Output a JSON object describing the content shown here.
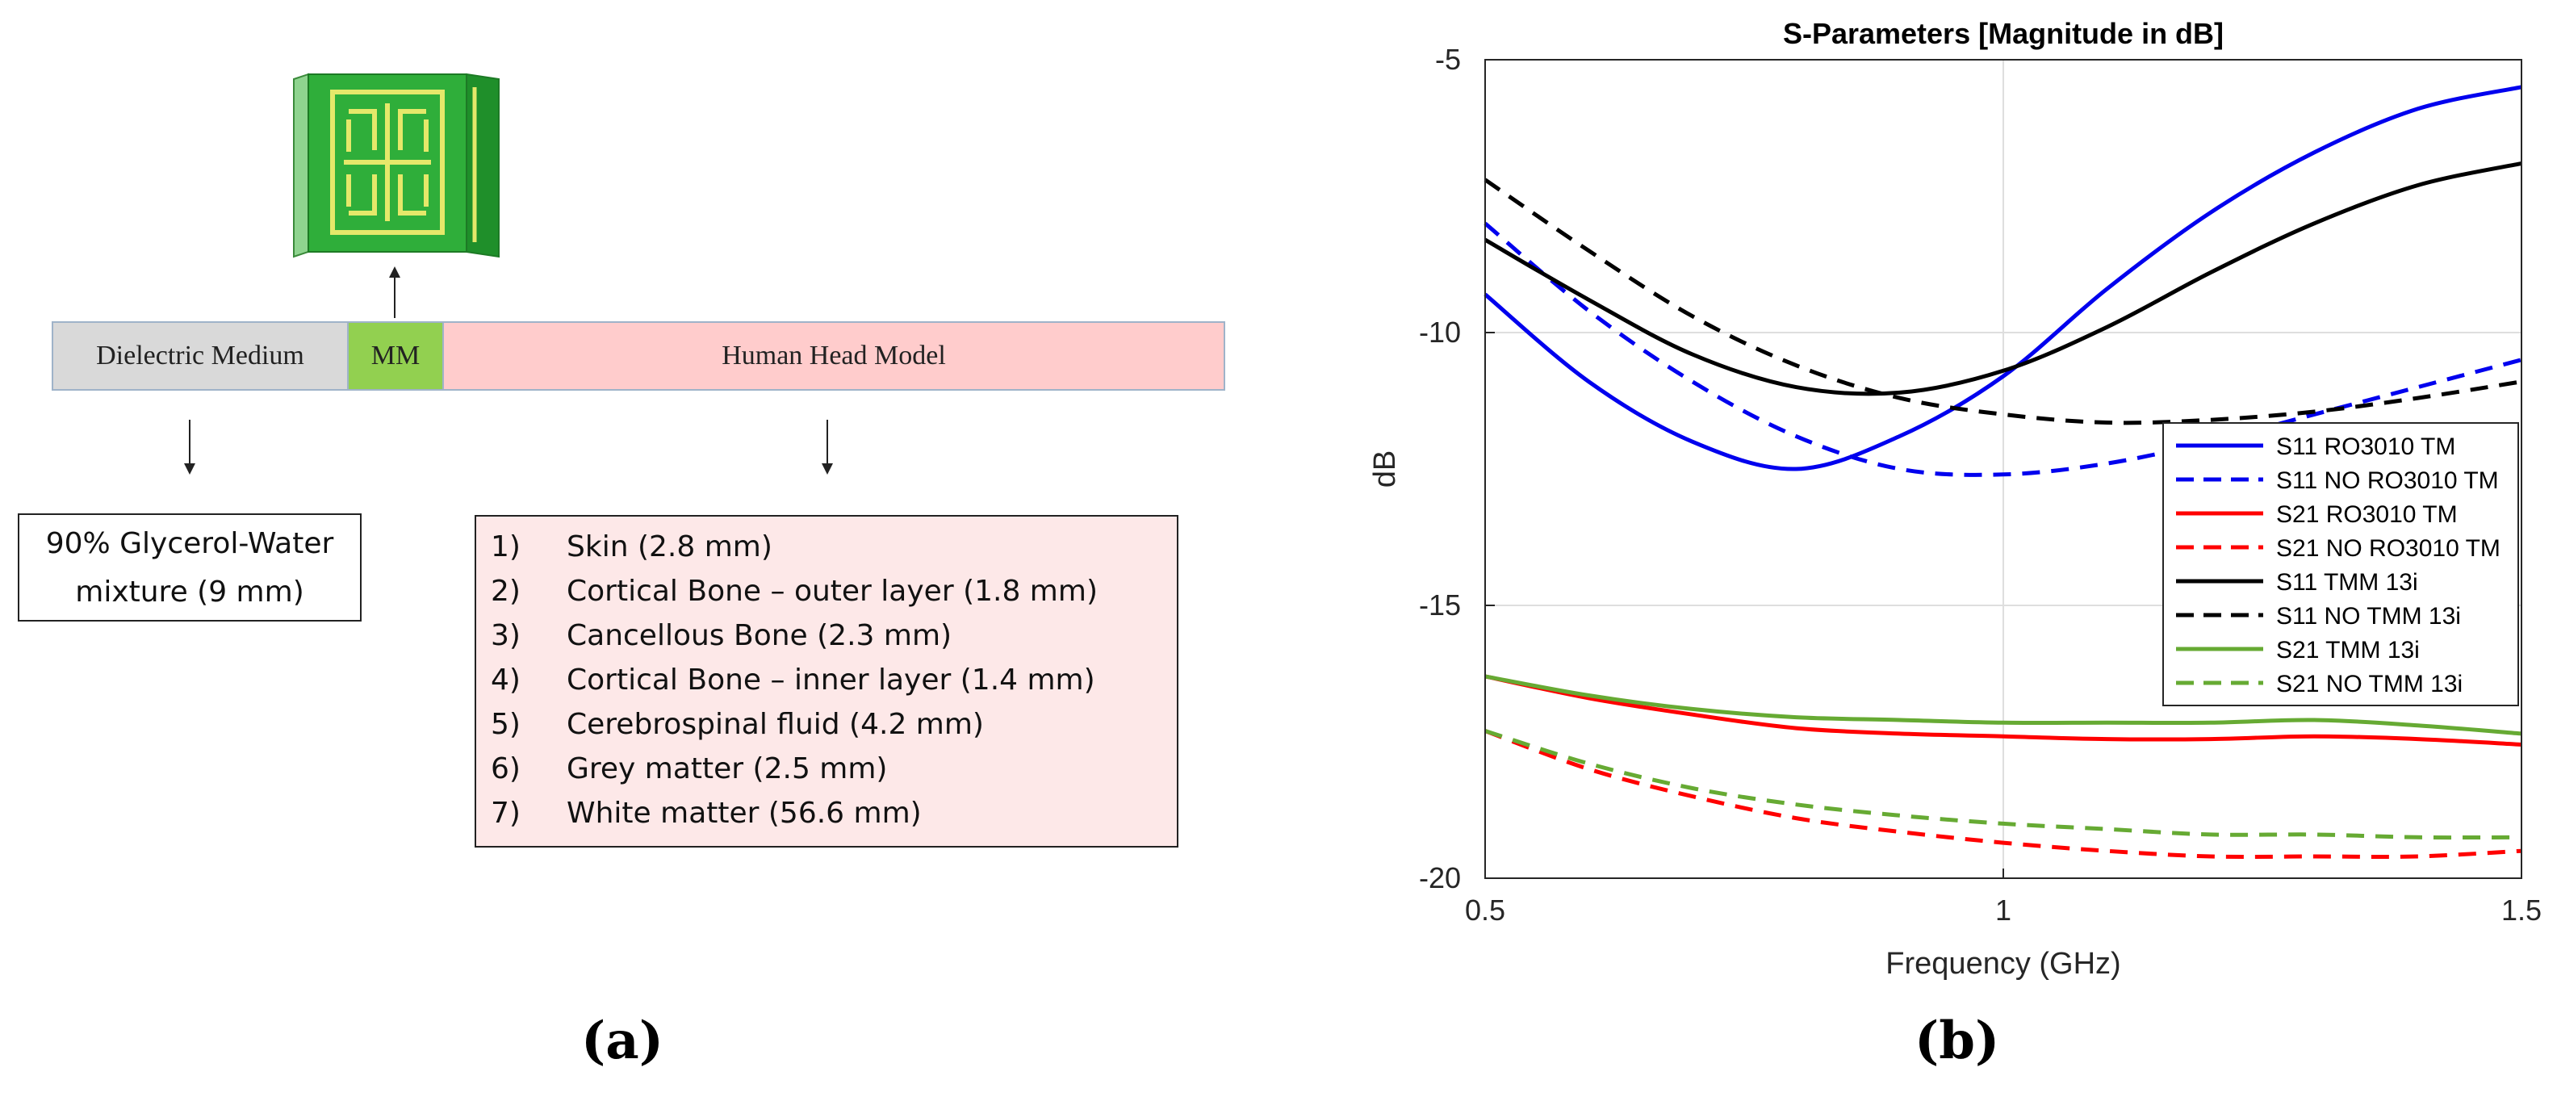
{
  "panel_a": {
    "label": "(a)",
    "layers": [
      {
        "name": "Dielectric Medium",
        "color": "#d9d9d9"
      },
      {
        "name": "MM",
        "color": "#92d050"
      },
      {
        "name": "Human Head Model",
        "color": "#ffcccc"
      }
    ],
    "glycerol_box": {
      "line1": "90% Glycerol-Water",
      "line2": "mixture (9 mm)"
    },
    "tissues": [
      {
        "num": "1)",
        "text": "Skin (2.8 mm)"
      },
      {
        "num": "2)",
        "text": "Cortical Bone – outer layer (1.8 mm)"
      },
      {
        "num": "3)",
        "text": "Cancellous Bone (2.3 mm)"
      },
      {
        "num": "4)",
        "text": "Cortical Bone – inner layer (1.4 mm)"
      },
      {
        "num": "5)",
        "text": "Cerebrospinal fluid (4.2 mm)"
      },
      {
        "num": "6)",
        "text": "Grey matter (2.5 mm)"
      },
      {
        "num": "7)",
        "text": "White matter (56.6 mm)"
      }
    ],
    "metamaterial_icon": "metamaterial-unit-cell-icon"
  },
  "panel_b": {
    "label": "(b)"
  },
  "chart_data": {
    "type": "line",
    "title": "S-Parameters [Magnitude in dB]",
    "xlabel": "Frequency (GHz)",
    "ylabel": "dB",
    "xlim": [
      0.5,
      1.5
    ],
    "ylim": [
      -20,
      -5
    ],
    "xticks": [
      0.5,
      1,
      1.5
    ],
    "xtick_labels": [
      "0.5",
      "1",
      "1.5"
    ],
    "yticks": [
      -20,
      -15,
      -10,
      -5
    ],
    "ytick_labels": [
      "-20",
      "-15",
      "-10",
      "-5"
    ],
    "grid": true,
    "legend_position": "right",
    "x": [
      0.5,
      0.6,
      0.7,
      0.8,
      0.9,
      1.0,
      1.1,
      1.2,
      1.3,
      1.4,
      1.5
    ],
    "series": [
      {
        "name": "S11 RO3010 TM",
        "color": "#0000ee",
        "dash": "solid",
        "values": [
          -9.3,
          -10.9,
          -12.0,
          -12.5,
          -11.9,
          -10.8,
          -9.2,
          -7.8,
          -6.7,
          -5.9,
          -5.5
        ]
      },
      {
        "name": "S11 NO RO3010 TM",
        "color": "#0000ee",
        "dash": "dashed",
        "values": [
          -8.0,
          -9.6,
          -10.9,
          -11.9,
          -12.5,
          -12.6,
          -12.4,
          -12.0,
          -11.5,
          -11.0,
          -10.5
        ]
      },
      {
        "name": "S21 RO3010 TM",
        "color": "#ff0000",
        "dash": "solid",
        "values": [
          -16.3,
          -16.7,
          -17.0,
          -17.25,
          -17.35,
          -17.4,
          -17.45,
          -17.45,
          -17.4,
          -17.45,
          -17.55
        ]
      },
      {
        "name": "S21 NO RO3010 TM",
        "color": "#ff0000",
        "dash": "dashed",
        "values": [
          -17.3,
          -18.0,
          -18.5,
          -18.9,
          -19.15,
          -19.35,
          -19.5,
          -19.6,
          -19.6,
          -19.6,
          -19.5
        ]
      },
      {
        "name": "S11 TMM 13i",
        "color": "#000000",
        "dash": "solid",
        "values": [
          -8.3,
          -9.4,
          -10.4,
          -11.0,
          -11.1,
          -10.7,
          -9.9,
          -8.9,
          -8.0,
          -7.3,
          -6.9
        ]
      },
      {
        "name": "S11 NO TMM 13i",
        "color": "#000000",
        "dash": "dashed",
        "values": [
          -7.2,
          -8.5,
          -9.7,
          -10.6,
          -11.2,
          -11.5,
          -11.65,
          -11.6,
          -11.45,
          -11.2,
          -10.9
        ]
      },
      {
        "name": "S21 TMM 13i",
        "color": "#66aa33",
        "dash": "solid",
        "values": [
          -16.3,
          -16.65,
          -16.9,
          -17.05,
          -17.1,
          -17.15,
          -17.15,
          -17.15,
          -17.1,
          -17.2,
          -17.35
        ]
      },
      {
        "name": "S21 NO TMM 13i",
        "color": "#66aa33",
        "dash": "dashed",
        "values": [
          -17.3,
          -17.9,
          -18.35,
          -18.65,
          -18.85,
          -19.0,
          -19.1,
          -19.2,
          -19.2,
          -19.25,
          -19.25
        ]
      }
    ]
  }
}
